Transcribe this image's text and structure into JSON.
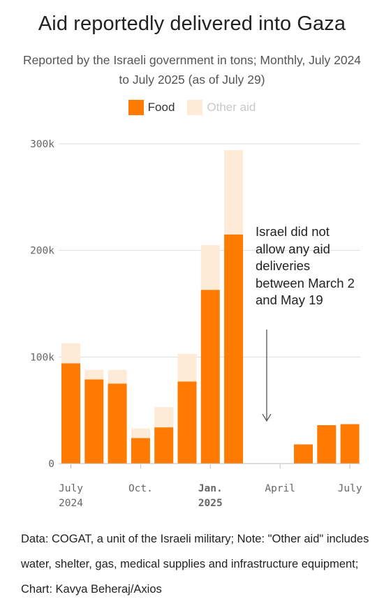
{
  "title": "Aid reportedly delivered into Gaza",
  "subtitle": "Reported by the Israeli government in tons; Monthly, July 2024 to July 2025 (as of July 29)",
  "legend": {
    "food": "Food",
    "other": "Other aid"
  },
  "colors": {
    "food": "#ff7a00",
    "other": "#fdebd8",
    "grid": "#dddddd",
    "axis": "#bdbdbd"
  },
  "annotation": "Israel did not allow any aid deliveries between March 2 and May 19",
  "footer": "Data: COGAT, a unit of the Israeli military; Note: \"Other aid\" includes water, shelter, gas, medical supplies and infrastructure equipment; Chart: Kavya Beheraj/Axios",
  "chart_data": {
    "type": "bar",
    "stacked": true,
    "categories": [
      "Jul 2024",
      "Aug 2024",
      "Sep 2024",
      "Oct 2024",
      "Nov 2024",
      "Dec 2024",
      "Jan 2025",
      "Feb 2025",
      "Mar 2025",
      "Apr 2025",
      "May 2025",
      "Jun 2025",
      "Jul 2025"
    ],
    "series": [
      {
        "name": "Food",
        "values": [
          94000,
          79000,
          75000,
          24000,
          34000,
          77000,
          163000,
          215000,
          0,
          0,
          18000,
          36000,
          37000
        ]
      },
      {
        "name": "Other aid",
        "values": [
          19000,
          9000,
          13000,
          9000,
          19000,
          26000,
          42000,
          79000,
          0,
          0,
          0,
          0,
          0
        ]
      }
    ],
    "ylim": [
      0,
      300000
    ],
    "yticks": [
      {
        "value": 0,
        "label": "0"
      },
      {
        "value": 100000,
        "label": "100k"
      },
      {
        "value": 200000,
        "label": "200k"
      },
      {
        "value": 300000,
        "label": "300k"
      }
    ],
    "xticks": [
      {
        "index": 0,
        "line1": "July",
        "line2": "2024",
        "bold": false
      },
      {
        "index": 3,
        "line1": "Oct.",
        "line2": "",
        "bold": false
      },
      {
        "index": 6,
        "line1": "Jan.",
        "line2": "2025",
        "bold": true
      },
      {
        "index": 9,
        "line1": "April",
        "line2": "",
        "bold": false
      },
      {
        "index": 12,
        "line1": "July",
        "line2": "",
        "bold": false
      }
    ],
    "grid": true
  }
}
